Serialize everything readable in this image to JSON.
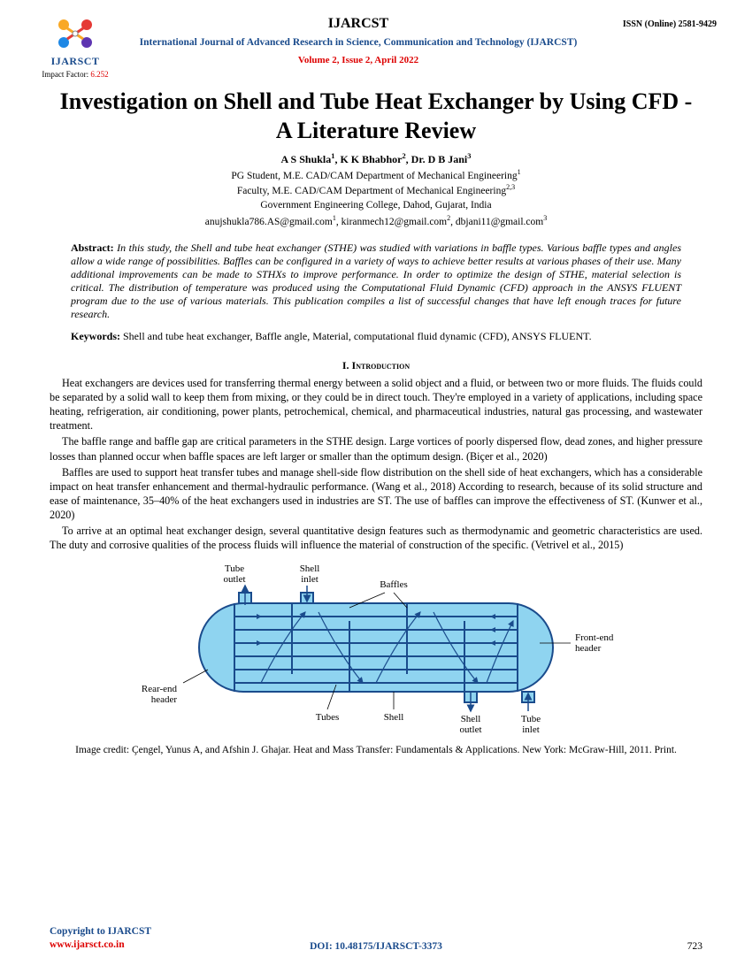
{
  "header": {
    "journal_abbr": "IJARCST",
    "journal_full": "International Journal of Advanced Research in Science, Communication and Technology (IJARCST)",
    "issue": "Volume 2, Issue 2, April 2022",
    "issn": "ISSN (Online) 2581-9429",
    "logo": {
      "text": "IJARSCT",
      "colors": [
        "#f9a825",
        "#e53935",
        "#5e35b1",
        "#1e88e5"
      ],
      "label_color": "#1a4b8c"
    },
    "impact_label": "Impact Factor: ",
    "impact_value": "6.252"
  },
  "title": "Investigation on Shell and Tube Heat Exchanger by Using CFD - A Literature Review",
  "authors_html": "A S Shukla<sup>1</sup>, K K Bhabhor<sup>2</sup>, Dr. D B Jani<sup>3</sup>",
  "affiliations": [
    "PG Student, M.E. CAD/CAM Department of Mechanical Engineering<sup>1</sup>",
    "Faculty, M.E. CAD/CAM Department of Mechanical Engineering<sup>2,3</sup>",
    "Government Engineering College, Dahod, Gujarat, India"
  ],
  "emails": "anujshukla786.AS@gmail.com<sup>1</sup>, kiranmech12@gmail.com<sup>2</sup>, dbjani11@gmail.com<sup>3</sup>",
  "abstract": {
    "label": "Abstract: ",
    "text": "In this study, the Shell and tube heat exchanger (STHE) was studied with variations in baffle types. Various baffle types and angles allow a wide range of possibilities. Baffles can be configured in a variety of ways to achieve better results at various phases of their use. Many additional improvements can be made to STHXs to improve performance. In order to optimize the design of STHE, material selection is critical.  The distribution of temperature was produced using the Computational Fluid Dynamic (CFD) approach in the ANSYS FLUENT program due to the use of various materials. This publication compiles a list of successful changes that have left enough traces for future research."
  },
  "keywords": {
    "label": "Keywords: ",
    "text": "Shell and tube heat exchanger, Baffle angle, Material, computational fluid dynamic (CFD), ANSYS FLUENT."
  },
  "section1": {
    "number": "I.",
    "title": "Introduction"
  },
  "paragraphs": [
    "Heat exchangers are devices used for transferring thermal energy between a solid object and a fluid, or between two or more fluids. The fluids could be separated by a solid wall to keep them from mixing, or they could be in direct touch. They're employed in a variety of applications, including space heating, refrigeration, air conditioning, power plants, petrochemical, chemical, and pharmaceutical industries, natural gas processing, and wastewater treatment.",
    "The baffle range and baffle gap are critical parameters in the STHE design. Large vortices of poorly dispersed flow, dead zones, and higher pressure losses than planned occur when baffle spaces are left larger or smaller than the optimum design. (Biçer et al., 2020)",
    "Baffles are used to support heat transfer tubes and manage shell-side flow distribution on the shell side of heat exchangers, which has a considerable impact on heat transfer enhancement and thermal-hydraulic performance. (Wang et al., 2018) According to research, because of its solid structure and ease of maintenance, 35–40% of the heat exchangers used in industries are ST. The use of baffles can improve the effectiveness of ST. (Kunwer et al., 2020)",
    "To arrive at an optimal heat exchanger design, several quantitative design features such as thermodynamic and geometric characteristics are used. The duty and corrosive qualities of the process fluids will influence the material of construction of the specific. (Vetrivel et al., 2015)"
  ],
  "diagram": {
    "type": "infographic",
    "shell_fill": "#8fd4f0",
    "shell_stroke": "#1a4b8c",
    "tube_stroke": "#1a4b8c",
    "arrow_color": "#1a4b8c",
    "text_color": "#000000",
    "fontsize": 11,
    "labels": {
      "tube_outlet": "Tube\noutlet",
      "shell_inlet": "Shell\ninlet",
      "baffles": "Baffles",
      "front_header": "Front-end\nheader",
      "rear_header": "Rear-end\nheader",
      "tubes": "Tubes",
      "shell": "Shell",
      "shell_outlet": "Shell\noutlet",
      "tube_inlet": "Tube\ninlet"
    }
  },
  "image_credit": "Image credit: Çengel, Yunus A, and Afshin J. Ghajar. Heat and Mass Transfer: Fundamentals & Applications. New York: McGraw-Hill, 2011. Print.",
  "footer": {
    "copyright": "Copyright to IJARCST",
    "url": "www.ijarsct.co.in",
    "doi": "DOI: 10.48175/IJARSCT-3373",
    "page": "723",
    "link_color": "#1a4b8c",
    "url_color": "#d00"
  }
}
